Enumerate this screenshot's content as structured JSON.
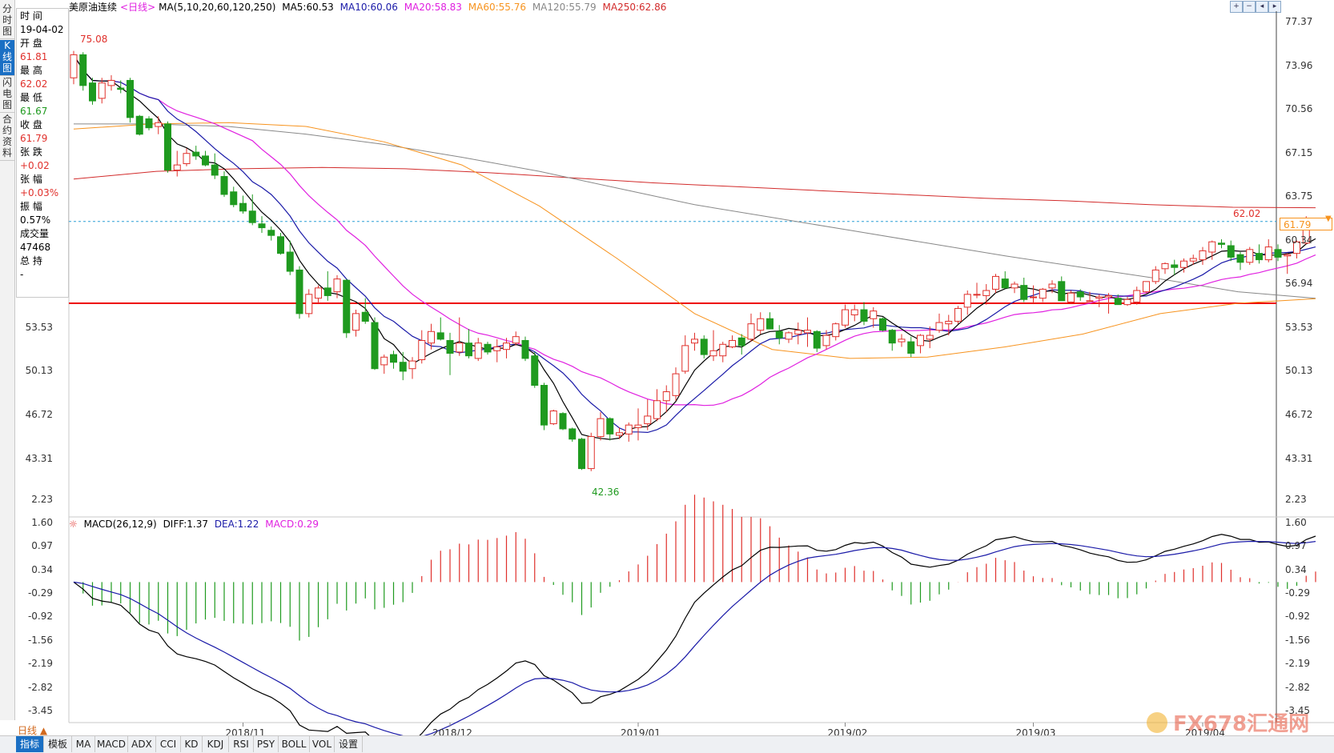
{
  "nav_tabs": [
    {
      "label": "分时图",
      "active": false
    },
    {
      "label": "K线图",
      "active": true
    },
    {
      "label": "闪电图",
      "active": false
    },
    {
      "label": "合约资料",
      "active": false
    }
  ],
  "info_panel": {
    "time_label": "时 间",
    "time_value": "19-04-02",
    "open_label": "开 盘",
    "open_value": "61.81",
    "high_label": "最 高",
    "high_value": "62.02",
    "low_label": "最 低",
    "low_value": "61.67",
    "close_label": "收 盘",
    "close_value": "61.79",
    "change_label": "张 跌",
    "change_value": "+0.02",
    "pct_label": "张 幅",
    "pct_value": "+0.03%",
    "amp_label": "振 幅",
    "amp_value": "0.57%",
    "vol_label": "成交量",
    "vol_value": "47468",
    "oi_label": "总 持",
    "oi_value": "-"
  },
  "title_bar": {
    "symbol": "美原油连续",
    "period": "<日线>",
    "ma_spec": "MA(5,10,20,60,120,250)",
    "ma5": "MA5:60.53",
    "ma10": "MA10:60.06",
    "ma20": "MA20:58.83",
    "ma60": "MA60:55.76",
    "ma120": "MA120:55.79",
    "ma250": "MA250:62.86"
  },
  "macd_bar": {
    "spec": "MACD(26,12,9)",
    "diff": "DIFF:1.37",
    "dea": "DEA:1.22",
    "macd": "MACD:0.29"
  },
  "price_axis": {
    "right": [
      "77.37",
      "73.96",
      "70.56",
      "67.15",
      "63.75",
      "60.34",
      "56.94",
      "53.53",
      "50.13",
      "46.72",
      "43.31"
    ],
    "left": [
      "53.53",
      "50.13",
      "46.72",
      "43.31"
    ]
  },
  "macd_axis": [
    "2.23",
    "1.60",
    "0.97",
    "0.34",
    "-0.29",
    "-0.92",
    "-1.56",
    "-2.19",
    "-2.82",
    "-3.45"
  ],
  "date_axis": [
    "2018/11",
    "2018/12",
    "2019/01",
    "2019/02",
    "2019/03",
    "2019/04"
  ],
  "annotations": {
    "high_mark": "75.08",
    "low_mark": "42.36",
    "last_high": "62.02",
    "current_price": "61.79"
  },
  "bottom_tabs": [
    {
      "label": "指标",
      "active": true
    },
    {
      "label": "模板",
      "active": false
    },
    {
      "label": "MA",
      "active": false
    },
    {
      "label": "MACD",
      "active": false
    },
    {
      "label": "ADX",
      "active": false
    },
    {
      "label": "CCI",
      "active": false
    },
    {
      "label": "KD",
      "active": false
    },
    {
      "label": "KDJ",
      "active": false
    },
    {
      "label": "RSI",
      "active": false
    },
    {
      "label": "PSY",
      "active": false
    },
    {
      "label": "BOLL",
      "active": false
    },
    {
      "label": "VOL",
      "active": false
    },
    {
      "label": "设置",
      "active": false
    }
  ],
  "period_selector": "日线 ▲",
  "watermark": "FX678汇通网",
  "colors": {
    "up": "#e0302b",
    "down": "#1f9a1f",
    "ma5": "#000000",
    "ma10": "#1a1aa8",
    "ma20": "#e020e0",
    "ma60": "#f7931e",
    "ma120": "#888888",
    "ma250": "#d22b2b",
    "support_line": "#ee0000",
    "price_line": "#2a9fd6"
  },
  "chart_data": {
    "type": "candlestick",
    "title": "美原油连续<日线>",
    "xlabel": "",
    "ylabel": "",
    "ylim": [
      41.6,
      78.2
    ],
    "grid": false,
    "x_ticks": [
      "2018/11",
      "2018/12",
      "2019/01",
      "2019/02",
      "2019/03",
      "2019/04"
    ],
    "x_tick_index": [
      18,
      40,
      60,
      82,
      102,
      120
    ],
    "support_level": 55.4,
    "last_price": 61.79,
    "ohlc": [
      [
        73.0,
        75.1,
        72.5,
        74.8
      ],
      [
        74.8,
        75.0,
        72.0,
        72.4
      ],
      [
        72.6,
        73.0,
        70.9,
        71.2
      ],
      [
        71.4,
        73.0,
        71.0,
        72.6
      ],
      [
        72.4,
        73.2,
        72.0,
        72.8
      ],
      [
        72.2,
        72.8,
        71.8,
        72.1
      ],
      [
        72.8,
        73.0,
        69.5,
        69.9
      ],
      [
        70.0,
        70.1,
        68.5,
        68.6
      ],
      [
        69.8,
        70.0,
        68.9,
        69.1
      ],
      [
        69.2,
        70.0,
        68.6,
        69.5
      ],
      [
        69.4,
        69.6,
        65.6,
        65.8
      ],
      [
        65.8,
        67.3,
        65.3,
        66.2
      ],
      [
        66.3,
        67.5,
        66.1,
        67.1
      ],
      [
        67.2,
        67.7,
        66.6,
        66.9
      ],
      [
        66.9,
        67.3,
        66.1,
        66.2
      ],
      [
        66.2,
        67.1,
        65.1,
        65.4
      ],
      [
        65.3,
        65.7,
        63.7,
        63.9
      ],
      [
        64.1,
        64.5,
        62.9,
        63.1
      ],
      [
        63.2,
        63.8,
        62.4,
        62.6
      ],
      [
        62.6,
        63.9,
        61.5,
        61.7
      ],
      [
        61.6,
        62.2,
        60.9,
        61.3
      ],
      [
        61.1,
        61.4,
        60.3,
        60.7
      ],
      [
        60.6,
        60.9,
        59.2,
        59.3
      ],
      [
        59.4,
        60.3,
        57.6,
        57.9
      ],
      [
        58.0,
        58.3,
        54.2,
        54.6
      ],
      [
        54.6,
        56.5,
        54.3,
        56.1
      ],
      [
        55.8,
        56.8,
        55.4,
        56.6
      ],
      [
        56.6,
        57.9,
        55.6,
        56.0
      ],
      [
        56.3,
        57.6,
        55.8,
        57.3
      ],
      [
        57.2,
        57.3,
        52.7,
        53.1
      ],
      [
        53.3,
        54.9,
        52.8,
        54.6
      ],
      [
        54.7,
        55.8,
        53.8,
        54.0
      ],
      [
        53.9,
        54.3,
        50.2,
        50.3
      ],
      [
        50.6,
        51.4,
        49.9,
        51.2
      ],
      [
        51.4,
        51.7,
        50.3,
        50.8
      ],
      [
        50.8,
        51.6,
        49.4,
        50.1
      ],
      [
        50.3,
        51.2,
        49.5,
        50.9
      ],
      [
        51.0,
        53.3,
        50.7,
        52.5
      ],
      [
        52.3,
        53.8,
        51.8,
        53.2
      ],
      [
        53.1,
        54.3,
        52.5,
        52.6
      ],
      [
        52.5,
        53.1,
        49.8,
        51.5
      ],
      [
        51.6,
        54.3,
        51.3,
        52.3
      ],
      [
        52.3,
        53.4,
        51.1,
        51.3
      ],
      [
        51.1,
        52.7,
        50.9,
        52.3
      ],
      [
        52.2,
        52.4,
        51.4,
        51.6
      ],
      [
        51.7,
        52.6,
        50.8,
        52.0
      ],
      [
        51.8,
        52.7,
        51.1,
        52.3
      ],
      [
        52.3,
        53.2,
        52.1,
        52.8
      ],
      [
        52.5,
        52.8,
        50.9,
        51.1
      ],
      [
        51.3,
        51.6,
        48.8,
        49.0
      ],
      [
        49.0,
        49.2,
        45.5,
        45.9
      ],
      [
        46.0,
        47.1,
        45.9,
        47.0
      ],
      [
        46.8,
        46.9,
        45.5,
        45.6
      ],
      [
        45.6,
        45.7,
        44.6,
        44.8
      ],
      [
        44.8,
        44.9,
        42.4,
        42.5
      ],
      [
        42.5,
        45.3,
        42.3,
        45.0
      ],
      [
        45.0,
        46.9,
        44.7,
        46.4
      ],
      [
        46.4,
        46.5,
        44.7,
        45.2
      ],
      [
        45.1,
        45.7,
        44.8,
        45.3
      ],
      [
        45.2,
        46.1,
        44.6,
        45.9
      ],
      [
        45.7,
        47.2,
        44.7,
        45.9
      ],
      [
        46.0,
        47.9,
        45.5,
        46.6
      ],
      [
        46.4,
        48.7,
        46.2,
        47.8
      ],
      [
        47.8,
        49.0,
        46.9,
        48.5
      ],
      [
        48.2,
        50.4,
        47.8,
        49.9
      ],
      [
        50.1,
        52.9,
        49.9,
        52.1
      ],
      [
        52.3,
        53.1,
        51.7,
        52.6
      ],
      [
        52.6,
        52.9,
        51.1,
        51.4
      ],
      [
        51.3,
        53.3,
        50.9,
        51.7
      ],
      [
        51.3,
        52.4,
        50.8,
        52.2
      ],
      [
        52.0,
        52.9,
        51.9,
        52.5
      ],
      [
        52.7,
        53.0,
        51.4,
        52.1
      ],
      [
        52.6,
        54.6,
        52.4,
        53.8
      ],
      [
        53.3,
        54.7,
        53.0,
        54.2
      ],
      [
        54.2,
        54.7,
        53.4,
        53.4
      ],
      [
        53.2,
        53.7,
        52.2,
        52.7
      ],
      [
        52.6,
        53.2,
        52.3,
        53.1
      ],
      [
        53.0,
        53.9,
        52.2,
        53.3
      ],
      [
        53.1,
        54.3,
        52.0,
        53.3
      ],
      [
        53.2,
        53.3,
        51.6,
        51.9
      ],
      [
        52.1,
        53.3,
        51.8,
        52.9
      ],
      [
        52.8,
        53.9,
        52.5,
        53.8
      ],
      [
        53.7,
        55.3,
        53.5,
        54.9
      ],
      [
        54.5,
        55.3,
        54.0,
        54.9
      ],
      [
        54.9,
        55.5,
        53.7,
        54.0
      ],
      [
        54.2,
        55.1,
        53.5,
        54.8
      ],
      [
        54.2,
        54.3,
        53.2,
        53.3
      ],
      [
        53.3,
        53.4,
        51.7,
        52.3
      ],
      [
        52.4,
        53.0,
        52.0,
        52.6
      ],
      [
        52.4,
        52.8,
        51.2,
        51.5
      ],
      [
        52.1,
        53.0,
        51.5,
        52.9
      ],
      [
        52.6,
        53.6,
        51.9,
        52.9
      ],
      [
        53.3,
        54.6,
        53.1,
        53.9
      ],
      [
        53.8,
        54.5,
        52.9,
        54.0
      ],
      [
        54.0,
        55.2,
        53.8,
        55.0
      ],
      [
        55.1,
        56.4,
        54.5,
        56.1
      ],
      [
        56.1,
        57.0,
        55.8,
        56.1
      ],
      [
        56.0,
        56.9,
        55.3,
        56.4
      ],
      [
        56.5,
        57.7,
        56.2,
        57.5
      ],
      [
        57.3,
        57.9,
        56.6,
        56.6
      ],
      [
        56.6,
        57.1,
        56.2,
        56.9
      ],
      [
        56.8,
        57.4,
        55.5,
        55.7
      ],
      [
        55.9,
        56.8,
        55.4,
        55.9
      ],
      [
        55.8,
        56.6,
        55.5,
        56.5
      ],
      [
        56.6,
        57.2,
        56.2,
        56.9
      ],
      [
        57.1,
        57.5,
        55.6,
        55.6
      ],
      [
        55.5,
        56.4,
        55.4,
        56.2
      ],
      [
        56.3,
        56.5,
        55.6,
        55.9
      ],
      [
        55.6,
        56.3,
        55.5,
        55.6
      ],
      [
        55.8,
        56.1,
        55.1,
        55.9
      ],
      [
        55.9,
        56.2,
        54.6,
        56.0
      ],
      [
        55.8,
        56.1,
        55.3,
        55.3
      ],
      [
        55.3,
        55.9,
        55.2,
        55.7
      ],
      [
        55.5,
        56.7,
        55.3,
        56.4
      ],
      [
        56.3,
        57.1,
        56.2,
        57.1
      ],
      [
        57.1,
        58.3,
        56.9,
        58.0
      ],
      [
        58.1,
        58.6,
        57.7,
        58.5
      ],
      [
        58.4,
        58.8,
        57.6,
        58.2
      ],
      [
        58.2,
        58.9,
        57.8,
        58.7
      ],
      [
        58.7,
        59.2,
        58.4,
        58.9
      ],
      [
        58.8,
        59.8,
        58.4,
        59.5
      ],
      [
        59.4,
        60.3,
        58.8,
        60.2
      ],
      [
        60.1,
        60.4,
        59.7,
        60.0
      ],
      [
        59.9,
        60.3,
        58.7,
        59.0
      ],
      [
        59.2,
        59.4,
        58.0,
        58.6
      ],
      [
        58.6,
        59.8,
        58.4,
        59.6
      ],
      [
        59.3,
        60.0,
        58.5,
        58.8
      ],
      [
        58.8,
        60.4,
        58.6,
        59.8
      ],
      [
        59.6,
        60.0,
        58.7,
        59.0
      ],
      [
        59.1,
        59.3,
        57.7,
        59.2
      ],
      [
        59.3,
        60.3,
        58.9,
        60.2
      ],
      [
        60.1,
        62.2,
        60.0,
        62.0
      ],
      [
        61.81,
        62.02,
        61.67,
        61.79
      ]
    ],
    "ma_final": {
      "MA5": 60.53,
      "MA10": 60.06,
      "MA20": 58.83,
      "MA60": 55.76,
      "MA120": 55.79,
      "MA250": 62.86
    },
    "ma60_series": [
      69.0,
      69.4,
      69.5,
      69.2,
      68.0,
      66.2,
      63.0,
      58.9,
      54.6,
      51.8,
      51.1,
      51.2,
      52.0,
      53.0,
      54.6,
      55.4,
      55.76
    ],
    "ma120_series": [
      69.4,
      69.4,
      69.2,
      68.6,
      67.8,
      66.8,
      65.7,
      64.4,
      63.1,
      62.1,
      61.1,
      60.1,
      59.1,
      58.2,
      57.3,
      56.3,
      55.79
    ],
    "ma250_series": [
      65.1,
      65.7,
      65.9,
      66.0,
      65.9,
      65.6,
      65.2,
      64.8,
      64.5,
      64.2,
      63.9,
      63.6,
      63.4,
      63.1,
      62.9,
      62.86
    ]
  },
  "macd_data": {
    "ylim": [
      -3.75,
      2.35
    ],
    "dif_final": 1.37,
    "dea_final": 1.22,
    "macd_final": 0.29
  }
}
